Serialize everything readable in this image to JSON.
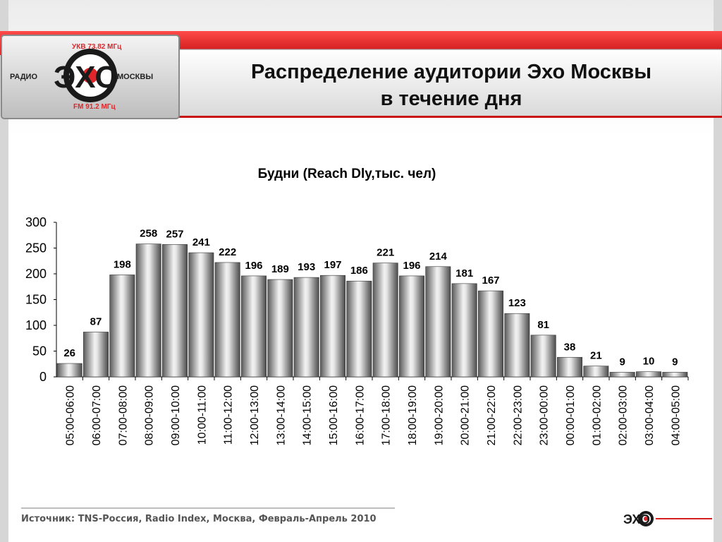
{
  "header": {
    "title_line1": "Распределение аудитории Эхо Москвы",
    "title_line2": "в течение дня"
  },
  "logo": {
    "top_text": "УКВ 73.82 МГц",
    "bottom_text": "FM 91.2 МГц",
    "left_text": "РАДИО",
    "main_text": "ЭХО",
    "right_text": "МОСКВЫ"
  },
  "colors": {
    "brand_red": "#e0262b",
    "bar_light": "#f2f2f2",
    "bar_dark": "#4a4a4a"
  },
  "chart_data": {
    "type": "bar",
    "title": "Будни (Reach Dly,тыс. чел)",
    "xlabel": "",
    "ylabel": "",
    "ylim": [
      0,
      300
    ],
    "yticks": [
      "0",
      "50",
      "100",
      "150",
      "200",
      "250",
      "300"
    ],
    "grid": false,
    "categories": [
      "05:00-06:00",
      "06:00-07:00",
      "07:00-08:00",
      "08:00-09:00",
      "09:00-10:00",
      "10:00-11:00",
      "11:00-12:00",
      "12:00-13:00",
      "13:00-14:00",
      "14:00-15:00",
      "15:00-16:00",
      "16:00-17:00",
      "17:00-18:00",
      "18:00-19:00",
      "19:00-20:00",
      "20:00-21:00",
      "21:00-22:00",
      "22:00-23:00",
      "23:00-00:00",
      "00:00-01:00",
      "01:00-02:00",
      "02:00-03:00",
      "03:00-04:00",
      "04:00-05:00"
    ],
    "values": [
      26,
      87,
      198,
      258,
      257,
      241,
      222,
      196,
      189,
      193,
      197,
      186,
      221,
      196,
      214,
      181,
      167,
      123,
      81,
      38,
      21,
      9,
      10,
      9
    ]
  },
  "footer": {
    "source": "Источник: TNS-Россия, Radio Index, Москва, Февраль-Апрель 2010"
  }
}
